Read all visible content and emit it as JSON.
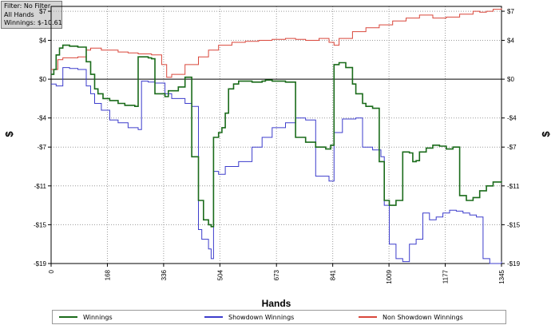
{
  "filter": {
    "line1": "Filter: No Filter",
    "line2": "All Hands",
    "line3": "Winnings: $-10.61"
  },
  "chart_data": {
    "type": "line",
    "xlabel": "Hands",
    "ylabel": "$",
    "ylabel_right": "$",
    "xlim": [
      0,
      1345
    ],
    "ylim": [
      -19,
      7.5
    ],
    "x_ticks": [
      0,
      168,
      336,
      504,
      673,
      841,
      1009,
      1177,
      1345
    ],
    "y_ticks": [
      7,
      4,
      0,
      -4,
      -7,
      -11,
      -15,
      -19
    ],
    "y_tick_labels": [
      "$7",
      "$4",
      "$0",
      "-$4",
      "-$7",
      "-$11",
      "-$15",
      "-$19"
    ],
    "grid": true,
    "legend_position": "bottom",
    "colors": {
      "winnings": "#1a6b1a",
      "showdown": "#3d3dcc",
      "non_showdown": "#d9473b"
    },
    "series": [
      {
        "name": "Winnings",
        "x": [
          0,
          8,
          15,
          25,
          35,
          55,
          80,
          105,
          118,
          130,
          140,
          155,
          175,
          200,
          220,
          250,
          260,
          290,
          300,
          310,
          340,
          350,
          380,
          400,
          420,
          440,
          455,
          470,
          478,
          485,
          500,
          510,
          520,
          530,
          545,
          560,
          600,
          630,
          640,
          660,
          670,
          700,
          730,
          760,
          790,
          820,
          835,
          845,
          860,
          880,
          900,
          910,
          930,
          940,
          960,
          980,
          995,
          1010,
          1030,
          1050,
          1070,
          1080,
          1090,
          1100,
          1120,
          1140,
          1160,
          1180,
          1200,
          1220,
          1240,
          1260,
          1280,
          1300,
          1320,
          1345
        ],
        "y": [
          0.5,
          1,
          2.5,
          3.2,
          3.5,
          3.4,
          3.3,
          1.8,
          0.5,
          -1,
          -1.5,
          -2,
          -2.2,
          -2.5,
          -2.7,
          -2.8,
          2.3,
          2.2,
          2.1,
          -1.5,
          -1.8,
          -1.2,
          -0.8,
          0.2,
          -8,
          -12.5,
          -14.5,
          -15,
          -15.2,
          -6,
          -5.5,
          -5,
          -3.5,
          -1,
          -0.5,
          -0.2,
          -0.3,
          -0.2,
          -0.1,
          -0.2,
          -0.2,
          -0.3,
          -6,
          -6.5,
          -7,
          -7.2,
          -6.8,
          1.5,
          1.7,
          1.2,
          -0.5,
          -1.5,
          -2.5,
          -2.8,
          -3,
          -8.5,
          -12.5,
          -13,
          -12.5,
          -7.5,
          -7.6,
          -8.5,
          -8.4,
          -7.5,
          -7.1,
          -6.8,
          -6.9,
          -7.2,
          -7,
          -12,
          -12.5,
          -12.2,
          -11.5,
          -11,
          -10.6,
          -10.61
        ]
      },
      {
        "name": "Showdown Winnings",
        "x": [
          0,
          15,
          35,
          55,
          80,
          105,
          118,
          130,
          150,
          175,
          200,
          230,
          260,
          270,
          290,
          310,
          340,
          360,
          400,
          420,
          440,
          450,
          470,
          478,
          485,
          500,
          520,
          560,
          600,
          630,
          660,
          700,
          730,
          760,
          790,
          830,
          845,
          870,
          910,
          930,
          960,
          985,
          995,
          1010,
          1030,
          1050,
          1070,
          1090,
          1110,
          1130,
          1150,
          1170,
          1190,
          1210,
          1230,
          1250,
          1270,
          1290,
          1310,
          1330,
          1345
        ],
        "y": [
          -0.5,
          -0.7,
          1.2,
          1.1,
          1.0,
          -0.7,
          -1.5,
          -2.5,
          -3.2,
          -4.2,
          -4.5,
          -5,
          -5.2,
          -0.2,
          -0.3,
          -0.4,
          -1.5,
          -2.0,
          -2.5,
          -2.8,
          -15.5,
          -16.5,
          -17.5,
          -18.5,
          -9.5,
          -9.8,
          -9,
          -8.5,
          -7,
          -6,
          -5,
          -4.5,
          -4,
          -4.2,
          -10,
          -10.5,
          -5.5,
          -4.1,
          -4.0,
          -7,
          -7.3,
          -8,
          -13,
          -17,
          -18.5,
          -18.8,
          -17,
          -16.5,
          -13.8,
          -14.5,
          -14.2,
          -13.8,
          -13.5,
          -13.6,
          -13.8,
          -14,
          -14.2,
          -18.5,
          -19,
          -19,
          -18.8
        ]
      },
      {
        "name": "Non Showdown Winnings",
        "x": [
          0,
          20,
          35,
          55,
          80,
          105,
          118,
          150,
          200,
          230,
          260,
          300,
          330,
          345,
          360,
          400,
          440,
          470,
          500,
          540,
          580,
          620,
          660,
          700,
          730,
          760,
          800,
          830,
          845,
          860,
          900,
          940,
          980,
          1020,
          1060,
          1100,
          1140,
          1180,
          1220,
          1260,
          1280,
          1300,
          1320,
          1345
        ],
        "y": [
          1.0,
          2.0,
          2.2,
          2.2,
          2.3,
          3.0,
          3.2,
          3.0,
          2.8,
          2.7,
          2.6,
          2.5,
          1.5,
          0.2,
          0.5,
          1.5,
          2.3,
          3.0,
          3.5,
          3.8,
          3.9,
          4.0,
          4.1,
          4.2,
          4.1,
          4.0,
          4.2,
          3.8,
          3.5,
          4.2,
          4.9,
          5.3,
          5.6,
          6.0,
          6.3,
          6.6,
          6.3,
          6.4,
          6.7,
          7.0,
          6.9,
          7.0,
          7.2,
          7.3
        ]
      }
    ]
  }
}
